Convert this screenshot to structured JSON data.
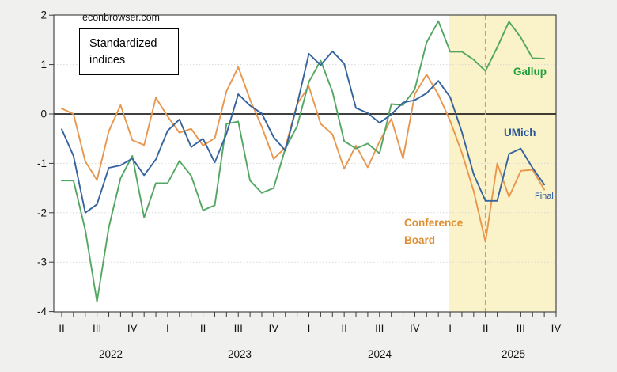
{
  "chart_data": {
    "type": "line",
    "watermark": "econbrowser.com",
    "note_box": {
      "line1": "Standardized",
      "line2": "indices"
    },
    "x_unit": "month",
    "x_start": "2022-04",
    "x_end": "2025-09",
    "x_axis": {
      "quarter_labels": [
        "II",
        "III",
        "IV",
        "I",
        "II",
        "III",
        "IV",
        "I",
        "II",
        "III",
        "IV",
        "I",
        "II",
        "III",
        "IV"
      ],
      "year_labels": [
        "2022",
        "2023",
        "2024",
        "2025"
      ]
    },
    "y_axis": {
      "ticks": [
        2,
        1,
        0,
        -1,
        -2,
        -3,
        -4
      ],
      "min": -4,
      "max": 2,
      "zero_line": true
    },
    "series": [
      {
        "name": "Conference Board",
        "color": "#E8974E",
        "values": [
          0.11,
          0.0,
          -0.96,
          -1.34,
          -0.35,
          0.18,
          -0.53,
          -0.63,
          0.33,
          -0.05,
          -0.38,
          -0.3,
          -0.64,
          -0.49,
          0.46,
          0.95,
          0.29,
          -0.26,
          -0.91,
          -0.68,
          0.2,
          0.56,
          -0.2,
          -0.41,
          -1.11,
          -0.64,
          -1.08,
          -0.56,
          -0.1,
          -0.9,
          0.4,
          0.8,
          0.39,
          -0.14,
          -0.79,
          -1.56,
          -2.59,
          -1.0,
          -1.68,
          -1.15,
          -1.13,
          -1.53
        ]
      },
      {
        "name": "Gallup",
        "color": "#53A763",
        "values": [
          -1.35,
          -1.35,
          -2.35,
          -3.8,
          -2.3,
          -1.3,
          -0.85,
          -2.1,
          -1.4,
          -1.4,
          -0.95,
          -1.25,
          -1.95,
          -1.85,
          -0.2,
          -0.15,
          -1.35,
          -1.6,
          -1.5,
          -0.7,
          -0.25,
          0.65,
          1.08,
          0.45,
          -0.55,
          -0.7,
          -0.6,
          -0.8,
          0.2,
          0.18,
          0.5,
          1.45,
          1.88,
          1.26,
          1.26,
          1.1,
          0.87,
          1.35,
          1.87,
          1.55,
          1.13,
          1.12
        ]
      },
      {
        "name": "UMich",
        "color": "#35649E",
        "values": [
          -0.31,
          -0.85,
          -2.0,
          -1.83,
          -1.09,
          -1.04,
          -0.9,
          -1.24,
          -0.92,
          -0.34,
          -0.11,
          -0.67,
          -0.5,
          -0.98,
          -0.4,
          0.4,
          0.17,
          0.01,
          -0.47,
          -0.74,
          0.19,
          1.22,
          0.99,
          1.27,
          1.02,
          0.12,
          0.02,
          -0.18,
          -0.01,
          0.23,
          0.28,
          0.42,
          0.67,
          0.34,
          -0.37,
          -1.22,
          -1.76,
          -1.76,
          -0.81,
          -0.7,
          -1.09,
          -1.43
        ]
      }
    ],
    "shaded_region": {
      "from": "2025-01",
      "to": "2025-10",
      "color": "#FAF2C8"
    },
    "dashed_vline": {
      "at": "2025-04",
      "color": "#E8984F",
      "style": "dashed"
    },
    "annotations": {
      "gallup": {
        "text": "Gallup",
        "color": "#1FA13C"
      },
      "umich": {
        "text": "UMich",
        "color": "#27569B"
      },
      "final": {
        "text": "Final",
        "color": "#27569B"
      },
      "conference_board": {
        "text": "Conference\nBoard",
        "color": "#DE8F33"
      }
    },
    "layout_colors": {
      "canvas": "#F0F0EE",
      "plot_bg": "#FFFFFF",
      "frame": "#3a3a3a",
      "gridline": "#D8D8D8",
      "zero_line": "#000000",
      "tick_text": "#111111"
    }
  }
}
